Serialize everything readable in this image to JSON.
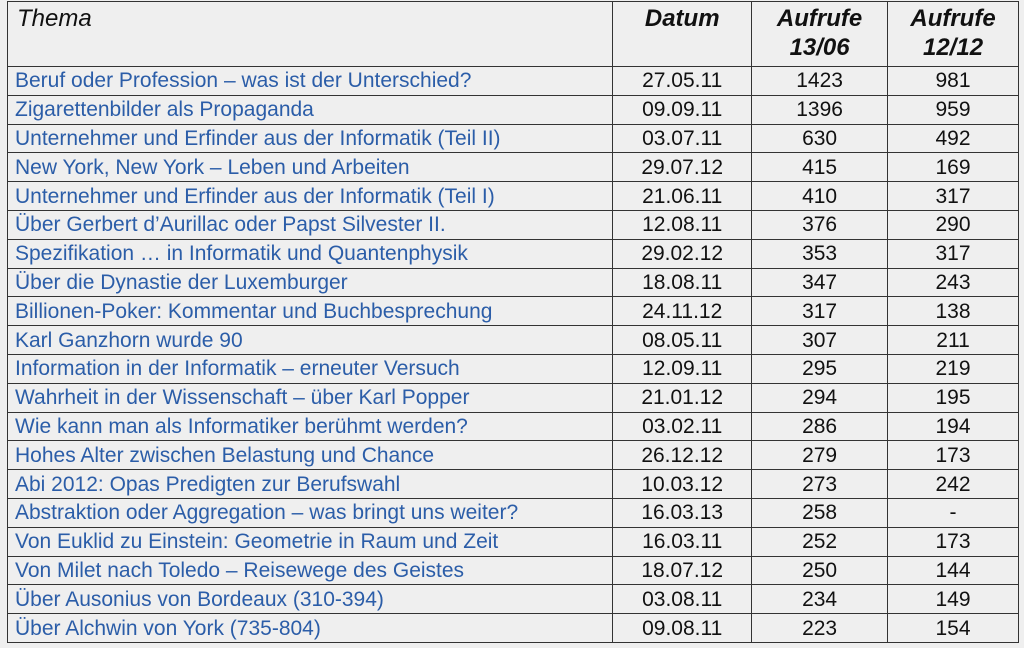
{
  "table": {
    "headers": {
      "thema": "Thema",
      "datum": "Datum",
      "aufrufe1_line1": "Aufrufe",
      "aufrufe1_line2": "13/06",
      "aufrufe2_line1": "Aufrufe",
      "aufrufe2_line2": "12/12"
    },
    "rows": [
      {
        "thema": "Beruf oder Profession – was ist der Unterschied?",
        "datum": "27.05.11",
        "aufrufe_1306": "1423",
        "aufrufe_1212": "981"
      },
      {
        "thema": "Zigarettenbilder als Propaganda",
        "datum": "09.09.11",
        "aufrufe_1306": "1396",
        "aufrufe_1212": "959"
      },
      {
        "thema": "Unternehmer und Erfinder aus der Informatik (Teil II)",
        "datum": "03.07.11",
        "aufrufe_1306": "630",
        "aufrufe_1212": "492"
      },
      {
        "thema": "New York, New York – Leben und Arbeiten",
        "datum": "29.07.12",
        "aufrufe_1306": "415",
        "aufrufe_1212": "169"
      },
      {
        "thema": "Unternehmer und Erfinder aus der Informatik (Teil I)",
        "datum": "21.06.11",
        "aufrufe_1306": "410",
        "aufrufe_1212": "317"
      },
      {
        "thema": "Über Gerbert d’Aurillac oder Papst Silvester II.",
        "datum": "12.08.11",
        "aufrufe_1306": "376",
        "aufrufe_1212": "290"
      },
      {
        "thema": "Spezifikation … in Informatik und Quantenphysik",
        "datum": "29.02.12",
        "aufrufe_1306": "353",
        "aufrufe_1212": "317"
      },
      {
        "thema": "Über die Dynastie der Luxemburger",
        "datum": "18.08.11",
        "aufrufe_1306": "347",
        "aufrufe_1212": "243"
      },
      {
        "thema": "Billionen-Poker: Kommentar und Buchbesprechung",
        "datum": "24.11.12",
        "aufrufe_1306": "317",
        "aufrufe_1212": "138"
      },
      {
        "thema": "Karl Ganzhorn wurde 90",
        "datum": "08.05.11",
        "aufrufe_1306": "307",
        "aufrufe_1212": "211"
      },
      {
        "thema": "Information in der Informatik – erneuter Versuch",
        "datum": "12.09.11",
        "aufrufe_1306": "295",
        "aufrufe_1212": "219"
      },
      {
        "thema": "Wahrheit in der Wissenschaft – über Karl Popper",
        "datum": "21.01.12",
        "aufrufe_1306": "294",
        "aufrufe_1212": "195"
      },
      {
        "thema": "Wie kann man als Informatiker berühmt werden?",
        "datum": "03.02.11",
        "aufrufe_1306": "286",
        "aufrufe_1212": "194"
      },
      {
        "thema": "Hohes Alter zwischen Belastung und Chance",
        "datum": "26.12.12",
        "aufrufe_1306": "279",
        "aufrufe_1212": "173"
      },
      {
        "thema": "Abi 2012: Opas Predigten zur Berufswahl",
        "datum": "10.03.12",
        "aufrufe_1306": "273",
        "aufrufe_1212": "242"
      },
      {
        "thema": "Abstraktion oder Aggregation – was bringt uns weiter?",
        "datum": "16.03.13",
        "aufrufe_1306": "258",
        "aufrufe_1212": "-"
      },
      {
        "thema": "Von Euklid zu Einstein: Geometrie in Raum und Zeit",
        "datum": "16.03.11",
        "aufrufe_1306": "252",
        "aufrufe_1212": "173"
      },
      {
        "thema": "Von Milet nach Toledo – Reisewege des Geistes",
        "datum": "18.07.12",
        "aufrufe_1306": "250",
        "aufrufe_1212": "144"
      },
      {
        "thema": "Über Ausonius von Bordeaux (310-394)",
        "datum": "03.08.11",
        "aufrufe_1306": "234",
        "aufrufe_1212": "149"
      },
      {
        "thema": "Über Alchwin von York (735-804)",
        "datum": "09.08.11",
        "aufrufe_1306": "223",
        "aufrufe_1212": "154"
      }
    ]
  },
  "colors": {
    "link": "#2b5da8",
    "text": "#111111",
    "background": "#efefef",
    "border": "#333333"
  }
}
